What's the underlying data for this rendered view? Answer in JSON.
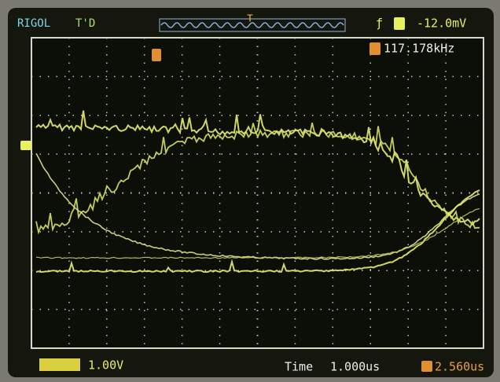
{
  "header": {
    "brand": "RIGOL",
    "status": "T'D",
    "trigger_level": "-12.0mV"
  },
  "measurement": {
    "frequency": "117.178kHz"
  },
  "footer": {
    "ch1_scale": "1.00V",
    "time_label": "Time",
    "time_scale": "1.000us",
    "trigger_offset": "2.560us"
  }
}
